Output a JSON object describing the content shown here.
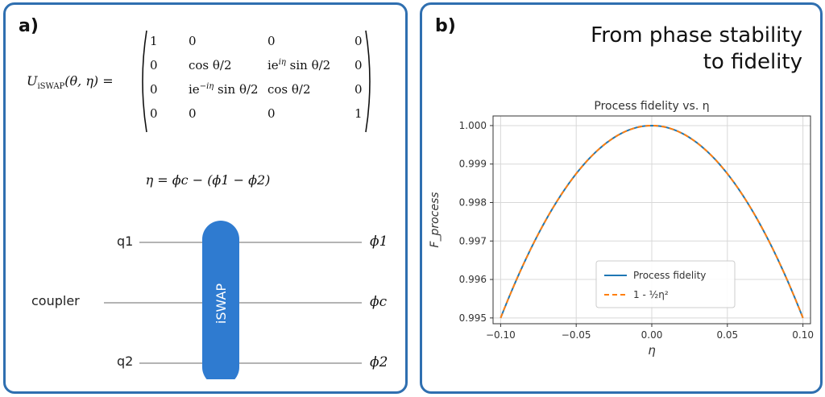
{
  "panel_a": {
    "label": "a)",
    "unitary": {
      "lhs_symbol": "U",
      "lhs_subscript": "iSWAP",
      "lhs_args": "(θ, η) =",
      "rows": [
        [
          "1",
          "0",
          "0",
          "0"
        ],
        [
          "0",
          "cos θ/2",
          "ie^{iη} sin θ/2",
          "0"
        ],
        [
          "0",
          "ie^{−iη} sin θ/2",
          "cos θ/2",
          "0"
        ],
        [
          "0",
          "0",
          "0",
          "1"
        ]
      ]
    },
    "eta_equation": "η = ϕc − (ϕ1 − ϕ2)",
    "circuit": {
      "gate_label": "iSWAP",
      "gate_color": "#2f7bd0",
      "wires": [
        {
          "left_label": "q1",
          "right_label": "ϕ1"
        },
        {
          "left_label": "coupler",
          "right_label": "ϕc"
        },
        {
          "left_label": "q2",
          "right_label": "ϕ2"
        }
      ]
    }
  },
  "panel_b": {
    "label": "b)",
    "title_line1": "From phase stability",
    "title_line2": "to fidelity",
    "chart_data": {
      "type": "line",
      "title": "Process fidelity vs. η",
      "xlabel": "η",
      "ylabel": "F_process",
      "xlim": [
        -0.105,
        0.105
      ],
      "ylim": [
        0.99485,
        1.00025
      ],
      "xticks": [
        -0.1,
        -0.05,
        0.0,
        0.05,
        0.1
      ],
      "xtick_labels": [
        "−0.10",
        "−0.05",
        "0.00",
        "0.05",
        "0.10"
      ],
      "yticks": [
        0.995,
        0.996,
        0.997,
        0.998,
        0.999,
        1.0
      ],
      "ytick_labels": [
        "0.995",
        "0.996",
        "0.997",
        "0.998",
        "0.999",
        "1.000"
      ],
      "grid": true,
      "legend_position": "lower-center",
      "series": [
        {
          "name": "Process fidelity",
          "color": "#1f77b4",
          "style": "solid",
          "formula": "1 - x^2/2",
          "x": [
            -0.1,
            -0.075,
            -0.05,
            -0.025,
            0.0,
            0.025,
            0.05,
            0.075,
            0.1
          ],
          "y": [
            0.995,
            0.99719,
            0.99875,
            0.99969,
            1.0,
            0.99969,
            0.99875,
            0.99719,
            0.995
          ]
        },
        {
          "name": "1 - ½η²",
          "color": "#ff7f0e",
          "style": "dashed",
          "formula": "1 - x^2/2",
          "x": [
            -0.1,
            -0.075,
            -0.05,
            -0.025,
            0.0,
            0.025,
            0.05,
            0.075,
            0.1
          ],
          "y": [
            0.995,
            0.99719,
            0.99875,
            0.99969,
            1.0,
            0.99969,
            0.99875,
            0.99719,
            0.995
          ]
        }
      ]
    }
  }
}
